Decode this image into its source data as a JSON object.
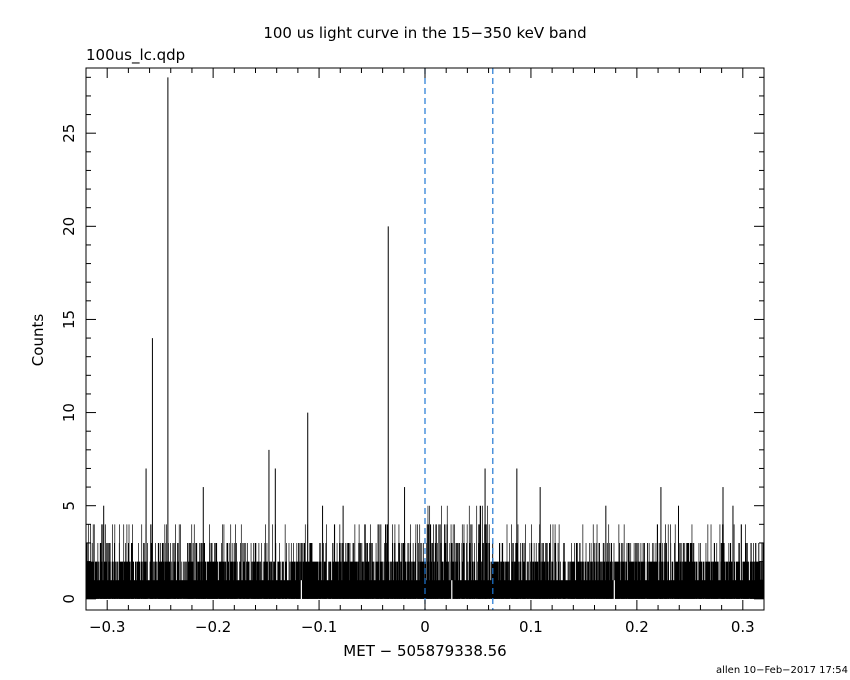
{
  "chart_data": {
    "type": "bar",
    "title": "100 us light curve in the 15−350 keV band",
    "subtitle": "100us_lc.qdp",
    "xlabel": "MET − 505879338.56",
    "ylabel": "Counts",
    "footer": "allen 10−Feb−2017 17:54",
    "xlim": [
      -0.32,
      0.32
    ],
    "ylim": [
      -0.6,
      28.5
    ],
    "x_ticks": [
      -0.3,
      -0.2,
      -0.1,
      0,
      0.1,
      0.2,
      0.3
    ],
    "x_tick_labels": [
      "−0.3",
      "−0.2",
      "−0.1",
      "0",
      "0.1",
      "0.2",
      "0.3"
    ],
    "y_ticks": [
      0,
      5,
      10,
      15,
      20,
      25
    ],
    "y_tick_labels": [
      "0",
      "5",
      "10",
      "15",
      "20",
      "25"
    ],
    "bin_width": 0.0001,
    "vertical_markers": [
      {
        "x": 0.0,
        "style": "dashed",
        "color": "#1f77d4"
      },
      {
        "x": 0.064,
        "style": "dashed",
        "color": "#1f77d4"
      }
    ],
    "peaks": [
      {
        "x": -0.3033,
        "y": 5
      },
      {
        "x": -0.2633,
        "y": 7
      },
      {
        "x": -0.2573,
        "y": 14
      },
      {
        "x": -0.2427,
        "y": 28
      },
      {
        "x": -0.2093,
        "y": 6
      },
      {
        "x": -0.1473,
        "y": 8
      },
      {
        "x": -0.1413,
        "y": 7
      },
      {
        "x": -0.1107,
        "y": 10
      },
      {
        "x": -0.0967,
        "y": 5
      },
      {
        "x": -0.0773,
        "y": 5
      },
      {
        "x": -0.0347,
        "y": 20
      },
      {
        "x": -0.0193,
        "y": 6
      },
      {
        "x": 0.0567,
        "y": 7
      },
      {
        "x": 0.0867,
        "y": 7
      },
      {
        "x": 0.1087,
        "y": 6
      },
      {
        "x": 0.1707,
        "y": 5
      },
      {
        "x": 0.2227,
        "y": 6
      },
      {
        "x": 0.2393,
        "y": 5
      },
      {
        "x": 0.2813,
        "y": 6
      },
      {
        "x": 0.2907,
        "y": 5
      }
    ],
    "baseline_level": 1,
    "noise_max": 4,
    "colors": {
      "data": "#000000",
      "markers": "#1f77d4",
      "axes": "#000000"
    }
  }
}
